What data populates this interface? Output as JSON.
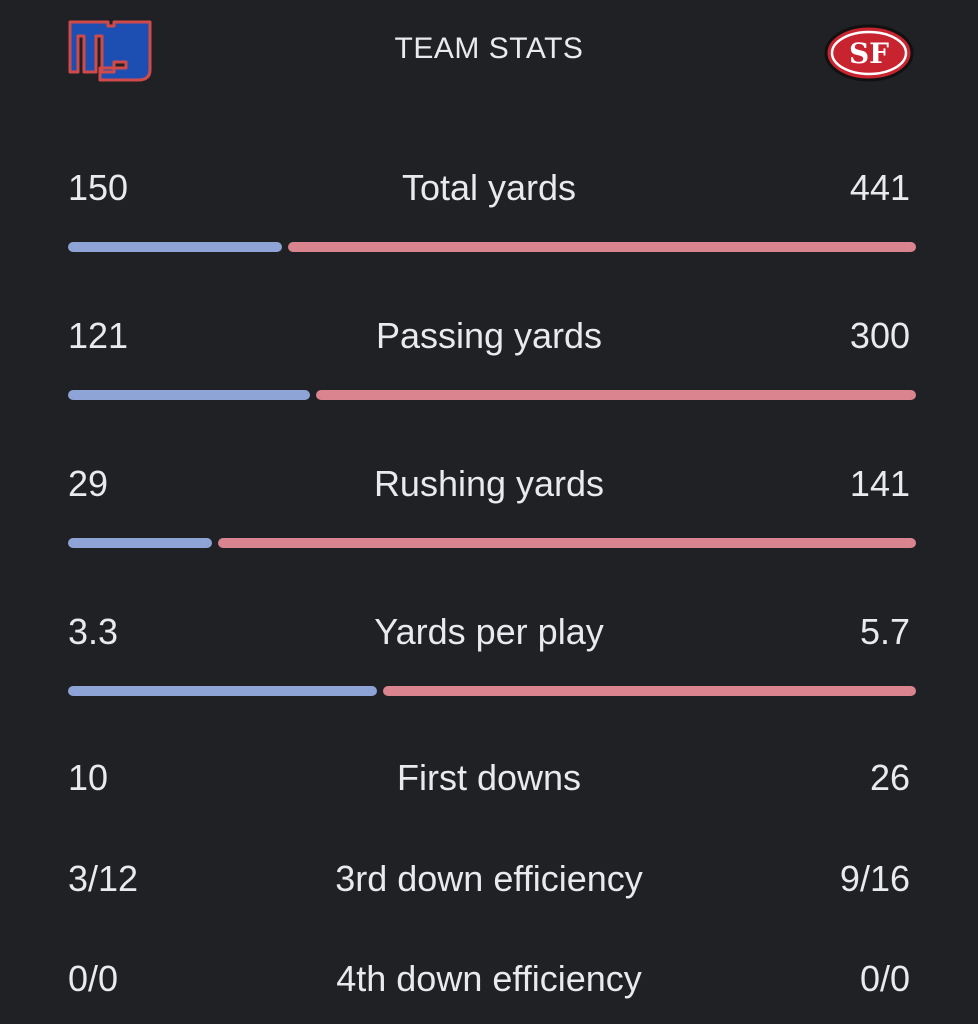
{
  "header": {
    "title": "TEAM STATS",
    "home_team_logo": "ny-logo",
    "away_team_logo": "sf-logo"
  },
  "colors": {
    "background": "#202124",
    "home_bar": "#8ea4d6",
    "away_bar": "#d9848f",
    "text": "#e8eaed"
  },
  "stats": [
    {
      "label": "Total yards",
      "left": "150",
      "right": "441",
      "left_share": 0.254,
      "has_bar": true
    },
    {
      "label": "Passing yards",
      "left": "121",
      "right": "300",
      "left_share": 0.287,
      "has_bar": true
    },
    {
      "label": "Rushing yards",
      "left": "29",
      "right": "141",
      "left_share": 0.171,
      "has_bar": true
    },
    {
      "label": "Yards per play",
      "left": "3.3",
      "right": "5.7",
      "left_share": 0.367,
      "has_bar": true
    },
    {
      "label": "First downs",
      "left": "10",
      "right": "26",
      "has_bar": false
    },
    {
      "label": "3rd down efficiency",
      "left": "3/12",
      "right": "9/16",
      "has_bar": false
    },
    {
      "label": "4th down efficiency",
      "left": "0/0",
      "right": "0/0",
      "has_bar": false
    }
  ]
}
